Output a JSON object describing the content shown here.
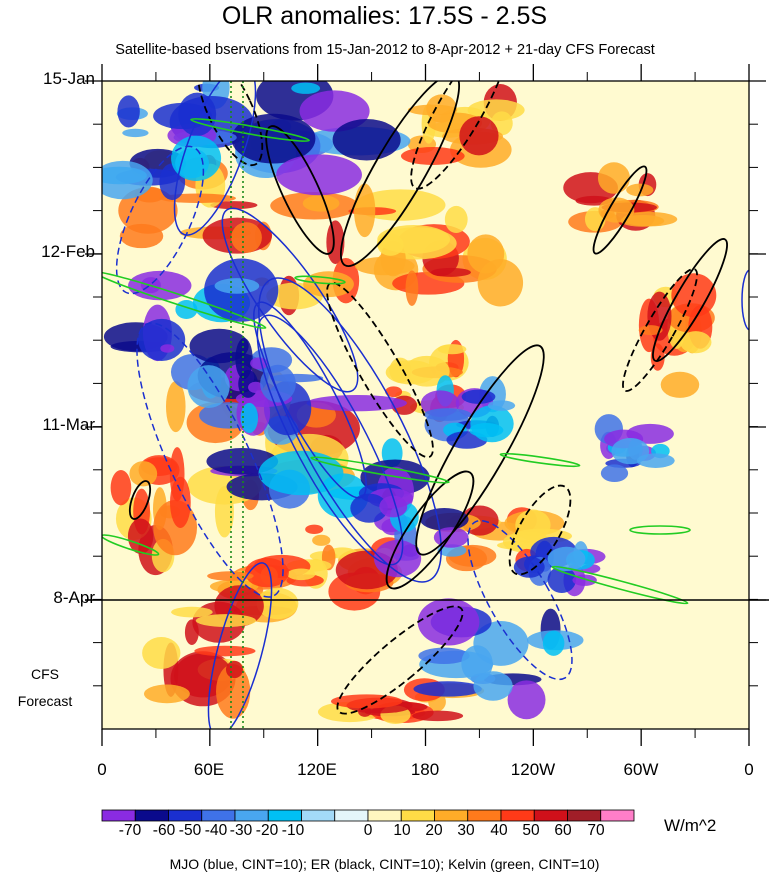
{
  "chart_data": {
    "type": "heatmap",
    "title": "OLR anomalies: 17.5S - 2.5S",
    "subtitle": "Satellite-based bservations from 15-Jan-2012 to 8-Apr-2012 + 21-day CFS Forecast",
    "y_ticks": [
      "15-Jan",
      "12-Feb",
      "11-Mar",
      "8-Apr"
    ],
    "x_ticks": [
      "0",
      "60E",
      "120E",
      "180",
      "120W",
      "60W",
      "0"
    ],
    "forecast_label": [
      "CFS",
      "Forecast"
    ],
    "colorbar": {
      "labels": [
        "-70",
        "-60",
        "-50",
        "-40",
        "-30",
        "-20",
        "-10",
        "0",
        "10",
        "20",
        "30",
        "40",
        "50",
        "60",
        "70"
      ],
      "colors": [
        "#8a2be2",
        "#0a0a8c",
        "#1a2fd0",
        "#3f72e8",
        "#49a6f0",
        "#00c0f4",
        "#a3daf8",
        "#e4f6fa",
        "#fff7c0",
        "#ffdc46",
        "#ffac28",
        "#ff7a1c",
        "#ff3a18",
        "#d0101a",
        "#a01e28",
        "#ff7ec8"
      ],
      "units": "W/m^2"
    },
    "footer": "MJO (blue, CINT=10); ER (black, CINT=10); Kelvin (green, CINT=10)",
    "colors": {
      "mjo": "#1a2fd0",
      "er": "#000000",
      "kelvin": "#22cc22",
      "forecast_marker": "#1a8a1a"
    }
  }
}
